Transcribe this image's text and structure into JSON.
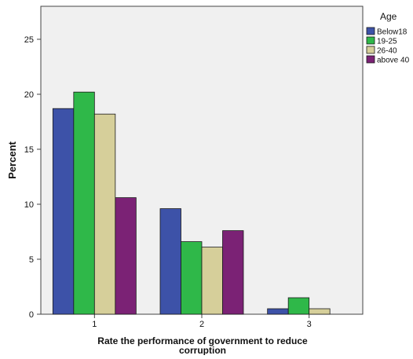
{
  "chart_data": {
    "type": "bar",
    "title": "",
    "xlabel": "Rate the performance of government to reduce corruption",
    "xlabel_lines": [
      "Rate the performance of government to reduce",
      "corruption"
    ],
    "ylabel": "Percent",
    "categories": [
      "1",
      "2",
      "3"
    ],
    "ylim": [
      0,
      28
    ],
    "yticks": [
      0,
      5,
      10,
      15,
      20,
      25
    ],
    "grid": false,
    "legend": {
      "title": "Age",
      "placement": "right"
    },
    "series": [
      {
        "name": "Below18",
        "color": "#3d52a8",
        "values": [
          18.7,
          9.6,
          0.5
        ]
      },
      {
        "name": "19-25",
        "color": "#2fb849",
        "values": [
          20.2,
          6.6,
          1.5
        ]
      },
      {
        "name": "26-40",
        "color": "#d6cf9a",
        "values": [
          18.2,
          6.1,
          0.5
        ]
      },
      {
        "name": "above 40",
        "color": "#7b2275",
        "values": [
          10.6,
          7.6,
          0.0
        ]
      }
    ],
    "plot_background": "#f0f0f0"
  }
}
